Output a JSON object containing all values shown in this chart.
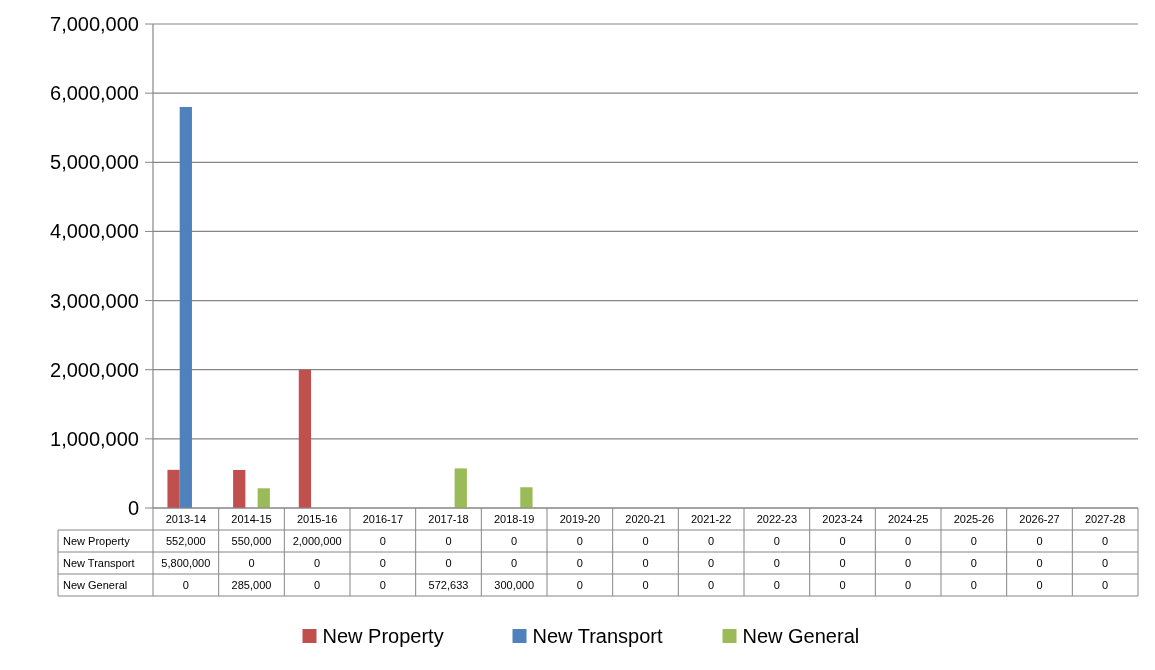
{
  "chart_data": {
    "type": "bar",
    "categories": [
      "2013-14",
      "2014-15",
      "2015-16",
      "2016-17",
      "2017-18",
      "2018-19",
      "2019-20",
      "2020-21",
      "2021-22",
      "2022-23",
      "2023-24",
      "2024-25",
      "2025-26",
      "2026-27",
      "2027-28"
    ],
    "series": [
      {
        "name": "New Property",
        "color": "#c0504d",
        "values": [
          552000,
          550000,
          2000000,
          0,
          0,
          0,
          0,
          0,
          0,
          0,
          0,
          0,
          0,
          0,
          0
        ],
        "value_labels": [
          "552,000",
          "550,000",
          "2,000,000",
          "0",
          "0",
          "0",
          "0",
          "0",
          "0",
          "0",
          "0",
          "0",
          "0",
          "0",
          "0"
        ]
      },
      {
        "name": "New Transport",
        "color": "#4f81bd",
        "values": [
          5800000,
          0,
          0,
          0,
          0,
          0,
          0,
          0,
          0,
          0,
          0,
          0,
          0,
          0,
          0
        ],
        "value_labels": [
          "5,800,000",
          "0",
          "0",
          "0",
          "0",
          "0",
          "0",
          "0",
          "0",
          "0",
          "0",
          "0",
          "0",
          "0",
          "0"
        ]
      },
      {
        "name": "New General",
        "color": "#9bbb59",
        "values": [
          0,
          285000,
          0,
          0,
          572633,
          300000,
          0,
          0,
          0,
          0,
          0,
          0,
          0,
          0,
          0
        ],
        "value_labels": [
          "0",
          "285,000",
          "0",
          "0",
          "572,633",
          "300,000",
          "0",
          "0",
          "0",
          "0",
          "0",
          "0",
          "0",
          "0",
          "0"
        ]
      }
    ],
    "ylim": [
      0,
      7000000
    ],
    "yticks": [
      {
        "value": 0,
        "label": "0"
      },
      {
        "value": 1000000,
        "label": "1,000,000"
      },
      {
        "value": 2000000,
        "label": "2,000,000"
      },
      {
        "value": 3000000,
        "label": "3,000,000"
      },
      {
        "value": 4000000,
        "label": "4,000,000"
      },
      {
        "value": 5000000,
        "label": "5,000,000"
      },
      {
        "value": 6000000,
        "label": "6,000,000"
      },
      {
        "value": 7000000,
        "label": "7,000,000"
      }
    ],
    "grid": "y",
    "legend": "bottom"
  }
}
